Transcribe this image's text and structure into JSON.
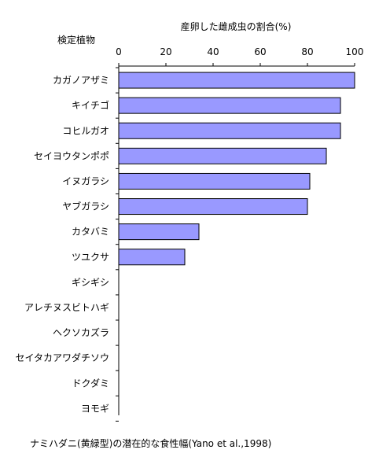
{
  "chart_data": {
    "type": "bar",
    "orientation": "horizontal",
    "title": "産卵した雌成虫の割合(%)",
    "ylabel": "検定植物",
    "caption": "ナミハダニ(黄緑型)の潜在的な食性幅(Yano et al.,1998)",
    "categories": [
      "カガノアザミ",
      "キイチゴ",
      "コヒルガオ",
      "セイヨウタンポポ",
      "イヌガラシ",
      "ヤブガラシ",
      "カタバミ",
      "ツユクサ",
      "ギシギシ",
      "アレチヌスビトハギ",
      "ヘクソカズラ",
      "セイタカアワダチソウ",
      "ドクダミ",
      "ヨモギ"
    ],
    "values": [
      100,
      94,
      94,
      88,
      81,
      80,
      34,
      28,
      0,
      0,
      0,
      0,
      0,
      0
    ],
    "xlim": [
      0,
      100
    ],
    "xticks": [
      "0",
      "20",
      "40",
      "60",
      "80",
      "100"
    ],
    "bar_color": "#9999ff",
    "bar_edge_color": "#000000",
    "grid": false,
    "axis_position": "top"
  }
}
